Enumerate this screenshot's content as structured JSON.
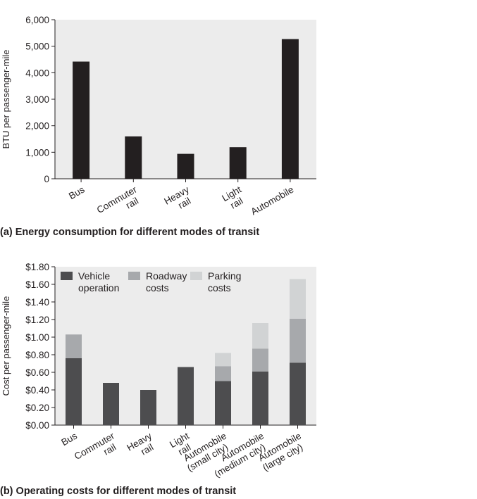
{
  "chart_data": [
    {
      "type": "bar",
      "title": "(a) Energy consumption for different modes of transit",
      "xlabel": "",
      "ylabel": "BTU per passenger-mile",
      "ylim": [
        0,
        6000
      ],
      "yticks": [
        0,
        1000,
        2000,
        3000,
        4000,
        5000,
        6000
      ],
      "ytick_labels": [
        "0",
        "1,000",
        "2,000",
        "3,000",
        "4,000",
        "5,000",
        "6,000"
      ],
      "grid": false,
      "categories": [
        [
          "Bus"
        ],
        [
          "Commuter",
          "rail"
        ],
        [
          "Heavy",
          "rail"
        ],
        [
          "Light",
          "rail"
        ],
        [
          "Automobile"
        ]
      ],
      "values": [
        4420,
        1600,
        940,
        1190,
        5270
      ],
      "colors": {
        "bar": "#231f20",
        "panel": "#ececec"
      }
    },
    {
      "type": "bar",
      "stacked": true,
      "title": "(b) Operating costs for different modes of transit",
      "xlabel": "",
      "ylabel": "Cost per passenger-mile",
      "ylim": [
        0,
        1.8
      ],
      "yticks": [
        0,
        0.2,
        0.4,
        0.6,
        0.8,
        1.0,
        1.2,
        1.4,
        1.6,
        1.8
      ],
      "ytick_labels": [
        "$0.00",
        "$0.20",
        "$0.40",
        "$0.60",
        "$0.80",
        "$1.00",
        "$1.20",
        "$1.40",
        "$1.60",
        "$1.80"
      ],
      "grid": false,
      "legend_position": "top",
      "categories": [
        [
          "Bus"
        ],
        [
          "Commuter",
          "rail"
        ],
        [
          "Heavy",
          "rail"
        ],
        [
          "Light",
          "rail"
        ],
        [
          "Automobile",
          "(small city)"
        ],
        [
          "Automobile",
          "(medium city)"
        ],
        [
          "Automobile",
          "(large city)"
        ]
      ],
      "series": [
        {
          "name": [
            "Vehicle",
            "operation"
          ],
          "values": [
            0.76,
            0.48,
            0.4,
            0.66,
            0.5,
            0.61,
            0.71
          ],
          "color": "#4d4d4f"
        },
        {
          "name": [
            "Roadway",
            "costs"
          ],
          "values": [
            0.27,
            0,
            0,
            0,
            0.17,
            0.26,
            0.5
          ],
          "color": "#a7a9ac"
        },
        {
          "name": [
            "Parking",
            "costs"
          ],
          "values": [
            0,
            0,
            0,
            0,
            0.15,
            0.29,
            0.45
          ],
          "color": "#d1d3d4"
        }
      ],
      "colors": {
        "panel": "#ececec"
      }
    }
  ]
}
